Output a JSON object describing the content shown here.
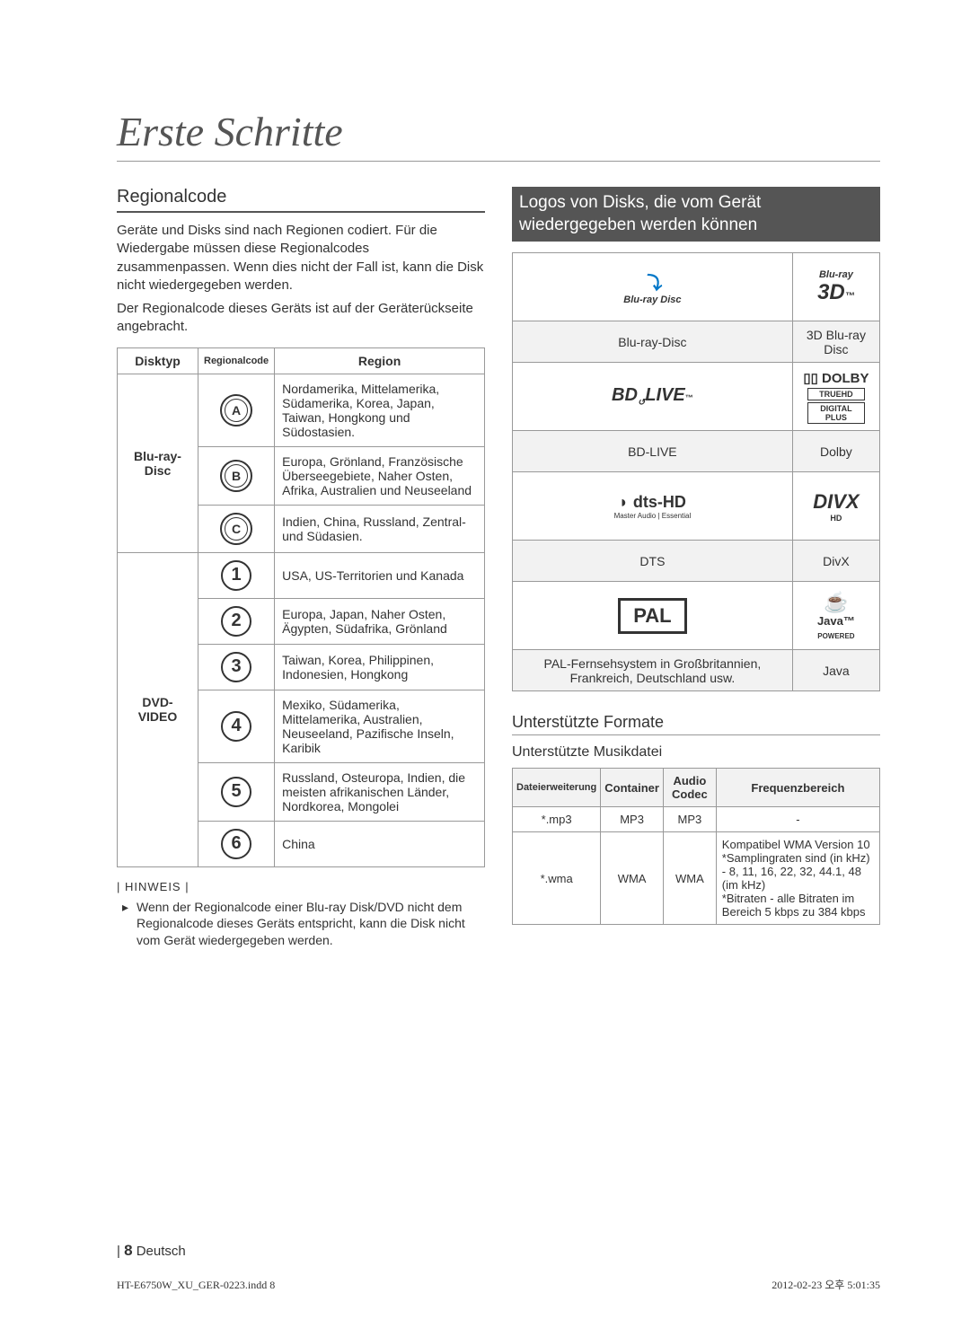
{
  "page_title": "Erste Schritte",
  "left": {
    "heading": "Regionalcode",
    "p1": "Geräte und Disks sind nach Regionen codiert. Für die Wiedergabe müssen diese Regionalcodes zusammenpassen. Wenn dies nicht der Fall ist, kann die Disk nicht wiedergegeben werden.",
    "p2": "Der Regionalcode dieses Geräts ist auf der Geräterückseite angebracht.",
    "th_disktyp": "Disktyp",
    "th_rc": "Regionalcode",
    "th_region": "Region",
    "type_bd": "Blu-ray-Disc",
    "type_dvd": "DVD-VIDEO",
    "bd_rows": [
      {
        "code": "A",
        "region": "Nordamerika, Mittelamerika, Südamerika, Korea, Japan, Taiwan, Hongkong und Südostasien."
      },
      {
        "code": "B",
        "region": "Europa, Grönland, Französische Überseegebiete, Naher Osten, Afrika, Australien und Neuseeland"
      },
      {
        "code": "C",
        "region": "Indien, China, Russland, Zentral- und Südasien."
      }
    ],
    "dvd_rows": [
      {
        "code": "1",
        "region": "USA, US-Territorien und Kanada"
      },
      {
        "code": "2",
        "region": "Europa, Japan, Naher Osten, Ägypten, Südafrika, Grönland"
      },
      {
        "code": "3",
        "region": "Taiwan, Korea, Philippinen, Indonesien, Hongkong"
      },
      {
        "code": "4",
        "region": "Mexiko, Südamerika, Mittelamerika, Australien, Neuseeland, Pazifische Inseln, Karibik"
      },
      {
        "code": "5",
        "region": "Russland, Osteuropa, Indien, die meisten afrikanischen Länder, Nordkorea, Mongolei"
      },
      {
        "code": "6",
        "region": "China"
      }
    ],
    "hinweis_label": "| HINWEIS |",
    "hinweis_body": "Wenn der Regionalcode einer Blu-ray Disk/DVD nicht dem Regionalcode dieses Geräts entspricht, kann die Disk nicht vom Gerät wiedergegeben werden."
  },
  "right": {
    "heading": "Logos von Disks, die vom Gerät wiedergegeben werden können",
    "logo_labels": [
      "Blu-ray-Disc",
      "3D Blu-ray Disc",
      "BD-LIVE",
      "Dolby",
      "DTS",
      "DivX",
      "PAL-Fernsehsystem in Großbritannien, Frankreich, Deutschland usw.",
      "Java"
    ],
    "formats_heading": "Unterstützte Formate",
    "music_heading": "Unterstützte Musikdatei",
    "fmt_headers": [
      "Dateierweiterung",
      "Container",
      "Audio Codec",
      "Frequenzbereich"
    ],
    "fmt_rows": [
      {
        "ext": "*.mp3",
        "container": "MP3",
        "codec": "MP3",
        "freq": "-"
      },
      {
        "ext": "*.wma",
        "container": "WMA",
        "codec": "WMA",
        "freq": "Kompatibel WMA Version 10\n*Samplingraten sind (in kHz) - 8, 11, 16, 22, 32, 44.1, 48 (im kHz)\n*Bitraten - alle Bitraten im Bereich 5 kbps zu 384 kbps"
      }
    ]
  },
  "footer": {
    "page": "8",
    "lang": "Deutsch",
    "file": "HT-E6750W_XU_GER-0223.indd   8",
    "date": "2012-02-23   오후 5:01:35"
  }
}
